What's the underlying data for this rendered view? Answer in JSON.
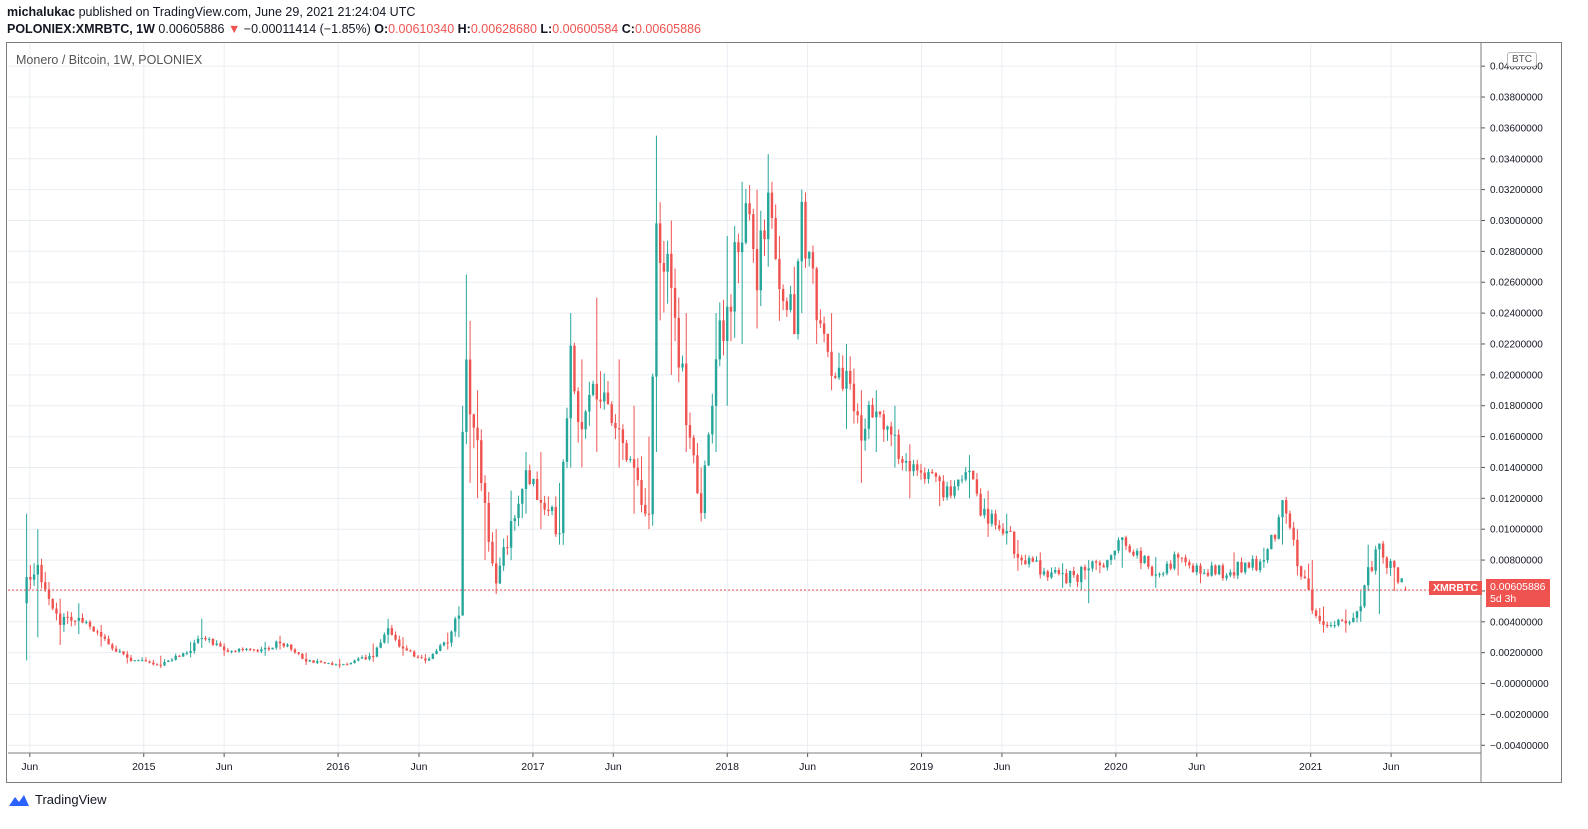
{
  "header": {
    "author": "michalukac",
    "published_text": "published on TradingView.com, June 29, 2021 21:24:04 UTC",
    "symbol": "POLONIEX:XMRBTC, 1W",
    "last": "0.00605886",
    "arrow": "▼",
    "change": "−0.00011414 (−1.85%)",
    "o_label": "O:",
    "o_value": "0.00610340",
    "h_label": "H:",
    "h_value": "0.00628680",
    "l_label": "L:",
    "l_value": "0.00600584",
    "c_label": "C:",
    "c_value": "0.00605886"
  },
  "series_title": "Monero / Bitcoin, 1W, POLONIEX",
  "currency_badge": "BTC",
  "price_label": {
    "symbol": "XMRBTC",
    "value": "0.00605886",
    "countdown": "5d 3h"
  },
  "footer": {
    "brand": "TradingView"
  },
  "colors": {
    "up": "#26a69a",
    "down": "#ef5350",
    "grid": "#e9eef2",
    "last_line": "#ef5350"
  },
  "chart_data": {
    "type": "candlestick",
    "title": "Monero / Bitcoin, 1W, POLONIEX",
    "x_tick_labels": [
      "Jun",
      "2015",
      "Jun",
      "2016",
      "Jun",
      "2017",
      "Jun",
      "2018",
      "Jun",
      "2019",
      "Jun",
      "2020",
      "Jun",
      "2021",
      "Jun"
    ],
    "y_tick_labels": [
      "0.04000000",
      "0.03800000",
      "0.03600000",
      "0.03400000",
      "0.03200000",
      "0.03000000",
      "0.02800000",
      "0.02600000",
      "0.02400000",
      "0.02200000",
      "0.02000000",
      "0.01800000",
      "0.01600000",
      "0.01400000",
      "0.01200000",
      "0.01000000",
      "0.00800000",
      "0.00600000",
      "0.00400000",
      "0.00200000",
      "−0.00000000",
      "−0.00200000",
      "−0.00400000"
    ],
    "ylim": [
      -0.0045,
      0.0415
    ],
    "last_price": 0.00605886,
    "grid": true,
    "anchors": [
      {
        "date": "2014-05-26",
        "close": 0.0065,
        "high": 0.011,
        "low": 0.0015
      },
      {
        "date": "2014-06-16",
        "close": 0.0072,
        "high": 0.01,
        "low": 0.003
      },
      {
        "date": "2014-07-28",
        "close": 0.004,
        "high": 0.0055,
        "low": 0.0025
      },
      {
        "date": "2014-09-01",
        "close": 0.0043,
        "high": 0.0052,
        "low": 0.0032
      },
      {
        "date": "2014-10-13",
        "close": 0.003,
        "high": 0.0038,
        "low": 0.0024
      },
      {
        "date": "2014-12-01",
        "close": 0.0016,
        "high": 0.0021,
        "low": 0.0013
      },
      {
        "date": "2015-02-02",
        "close": 0.0012,
        "high": 0.0018,
        "low": 0.001
      },
      {
        "date": "2015-03-30",
        "close": 0.0022,
        "high": 0.0027,
        "low": 0.0017
      },
      {
        "date": "2015-04-20",
        "close": 0.0031,
        "high": 0.0042,
        "low": 0.0023
      },
      {
        "date": "2015-06-01",
        "close": 0.0021,
        "high": 0.0026,
        "low": 0.0018
      },
      {
        "date": "2015-08-17",
        "close": 0.0022,
        "high": 0.0027,
        "low": 0.0018
      },
      {
        "date": "2015-09-14",
        "close": 0.0027,
        "high": 0.0031,
        "low": 0.0022
      },
      {
        "date": "2015-11-02",
        "close": 0.0015,
        "high": 0.002,
        "low": 0.0012
      },
      {
        "date": "2016-01-04",
        "close": 0.0012,
        "high": 0.0016,
        "low": 0.001
      },
      {
        "date": "2016-03-07",
        "close": 0.0018,
        "high": 0.0026,
        "low": 0.0014
      },
      {
        "date": "2016-04-04",
        "close": 0.0036,
        "high": 0.0042,
        "low": 0.0026
      },
      {
        "date": "2016-05-02",
        "close": 0.0022,
        "high": 0.003,
        "low": 0.0018
      },
      {
        "date": "2016-06-13",
        "close": 0.0015,
        "high": 0.0019,
        "low": 0.0013
      },
      {
        "date": "2016-07-25",
        "close": 0.0028,
        "high": 0.0033,
        "low": 0.0022
      },
      {
        "date": "2016-08-15",
        "close": 0.0045,
        "high": 0.005,
        "low": 0.003
      },
      {
        "date": "2016-08-22",
        "close": 0.016,
        "high": 0.018,
        "low": 0.009
      },
      {
        "date": "2016-08-29",
        "close": 0.022,
        "high": 0.0265,
        "low": 0.0155
      },
      {
        "date": "2016-09-05",
        "close": 0.0175,
        "high": 0.0235,
        "low": 0.013
      },
      {
        "date": "2016-09-19",
        "close": 0.016,
        "high": 0.019,
        "low": 0.012
      },
      {
        "date": "2016-10-03",
        "close": 0.011,
        "high": 0.0135,
        "low": 0.008
      },
      {
        "date": "2016-10-24",
        "close": 0.0068,
        "high": 0.01,
        "low": 0.0058
      },
      {
        "date": "2016-11-21",
        "close": 0.01,
        "high": 0.0125,
        "low": 0.008
      },
      {
        "date": "2016-12-19",
        "close": 0.014,
        "high": 0.015,
        "low": 0.011
      },
      {
        "date": "2017-01-16",
        "close": 0.012,
        "high": 0.015,
        "low": 0.01
      },
      {
        "date": "2017-02-20",
        "close": 0.01,
        "high": 0.013,
        "low": 0.009
      },
      {
        "date": "2017-03-13",
        "close": 0.0225,
        "high": 0.024,
        "low": 0.014
      },
      {
        "date": "2017-04-03",
        "close": 0.016,
        "high": 0.021,
        "low": 0.014
      },
      {
        "date": "2017-05-01",
        "close": 0.019,
        "high": 0.025,
        "low": 0.015
      },
      {
        "date": "2017-06-12",
        "close": 0.0175,
        "high": 0.021,
        "low": 0.014
      },
      {
        "date": "2017-07-10",
        "close": 0.0135,
        "high": 0.018,
        "low": 0.011
      },
      {
        "date": "2017-08-07",
        "close": 0.0105,
        "high": 0.016,
        "low": 0.01
      },
      {
        "date": "2017-08-21",
        "close": 0.03,
        "high": 0.0355,
        "low": 0.015
      },
      {
        "date": "2017-09-18",
        "close": 0.026,
        "high": 0.03,
        "low": 0.02
      },
      {
        "date": "2017-10-16",
        "close": 0.018,
        "high": 0.024,
        "low": 0.015
      },
      {
        "date": "2017-11-13",
        "close": 0.011,
        "high": 0.014,
        "low": 0.0105
      },
      {
        "date": "2017-12-11",
        "close": 0.021,
        "high": 0.024,
        "low": 0.015
      },
      {
        "date": "2018-01-01",
        "close": 0.024,
        "high": 0.029,
        "low": 0.018
      },
      {
        "date": "2018-01-29",
        "close": 0.03,
        "high": 0.0325,
        "low": 0.022
      },
      {
        "date": "2018-02-26",
        "close": 0.027,
        "high": 0.032,
        "low": 0.023
      },
      {
        "date": "2018-03-19",
        "close": 0.0315,
        "high": 0.0343,
        "low": 0.027
      },
      {
        "date": "2018-04-09",
        "close": 0.0255,
        "high": 0.029,
        "low": 0.0235
      },
      {
        "date": "2018-05-07",
        "close": 0.024,
        "high": 0.027,
        "low": 0.023
      },
      {
        "date": "2018-05-21",
        "close": 0.03,
        "high": 0.032,
        "low": 0.024
      },
      {
        "date": "2018-06-18",
        "close": 0.024,
        "high": 0.027,
        "low": 0.022
      },
      {
        "date": "2018-07-16",
        "close": 0.021,
        "high": 0.024,
        "low": 0.019
      },
      {
        "date": "2018-08-13",
        "close": 0.019,
        "high": 0.022,
        "low": 0.0165
      },
      {
        "date": "2018-09-10",
        "close": 0.016,
        "high": 0.019,
        "low": 0.013
      },
      {
        "date": "2018-10-08",
        "close": 0.018,
        "high": 0.019,
        "low": 0.015
      },
      {
        "date": "2018-11-12",
        "close": 0.016,
        "high": 0.018,
        "low": 0.014
      },
      {
        "date": "2018-12-10",
        "close": 0.0135,
        "high": 0.0155,
        "low": 0.012
      },
      {
        "date": "2019-02-04",
        "close": 0.0125,
        "high": 0.0135,
        "low": 0.0115
      },
      {
        "date": "2019-04-01",
        "close": 0.013,
        "high": 0.0148,
        "low": 0.012
      },
      {
        "date": "2019-05-06",
        "close": 0.0105,
        "high": 0.0125,
        "low": 0.0095
      },
      {
        "date": "2019-06-10",
        "close": 0.01,
        "high": 0.011,
        "low": 0.009
      },
      {
        "date": "2019-07-01",
        "close": 0.0082,
        "high": 0.0093,
        "low": 0.0073
      },
      {
        "date": "2019-08-12",
        "close": 0.0075,
        "high": 0.0085,
        "low": 0.0068
      },
      {
        "date": "2019-09-23",
        "close": 0.0068,
        "high": 0.0078,
        "low": 0.0062
      },
      {
        "date": "2019-11-11",
        "close": 0.0072,
        "high": 0.008,
        "low": 0.0052
      },
      {
        "date": "2020-01-13",
        "close": 0.009,
        "high": 0.0095,
        "low": 0.0075
      },
      {
        "date": "2020-03-16",
        "close": 0.0072,
        "high": 0.0082,
        "low": 0.0062
      },
      {
        "date": "2020-04-27",
        "close": 0.008,
        "high": 0.0085,
        "low": 0.007
      },
      {
        "date": "2020-06-08",
        "close": 0.007,
        "high": 0.0078,
        "low": 0.0065
      },
      {
        "date": "2020-08-10",
        "close": 0.0075,
        "high": 0.0085,
        "low": 0.0068
      },
      {
        "date": "2020-10-05",
        "close": 0.008,
        "high": 0.0088,
        "low": 0.0075
      },
      {
        "date": "2020-11-09",
        "close": 0.0112,
        "high": 0.0118,
        "low": 0.009
      },
      {
        "date": "2020-12-07",
        "close": 0.008,
        "high": 0.01,
        "low": 0.007
      },
      {
        "date": "2021-01-04",
        "close": 0.005,
        "high": 0.008,
        "low": 0.0045
      },
      {
        "date": "2021-01-25",
        "close": 0.004,
        "high": 0.005,
        "low": 0.0033
      },
      {
        "date": "2021-03-08",
        "close": 0.0038,
        "high": 0.0048,
        "low": 0.0033
      },
      {
        "date": "2021-04-05",
        "close": 0.005,
        "high": 0.006,
        "low": 0.004
      },
      {
        "date": "2021-04-19",
        "close": 0.0075,
        "high": 0.009,
        "low": 0.006
      },
      {
        "date": "2021-05-10",
        "close": 0.0085,
        "high": 0.009,
        "low": 0.0045
      },
      {
        "date": "2021-06-07",
        "close": 0.0072,
        "high": 0.008,
        "low": 0.006
      },
      {
        "date": "2021-06-28",
        "close": 0.00605886,
        "high": 0.0062868,
        "low": 0.00600584
      }
    ]
  }
}
